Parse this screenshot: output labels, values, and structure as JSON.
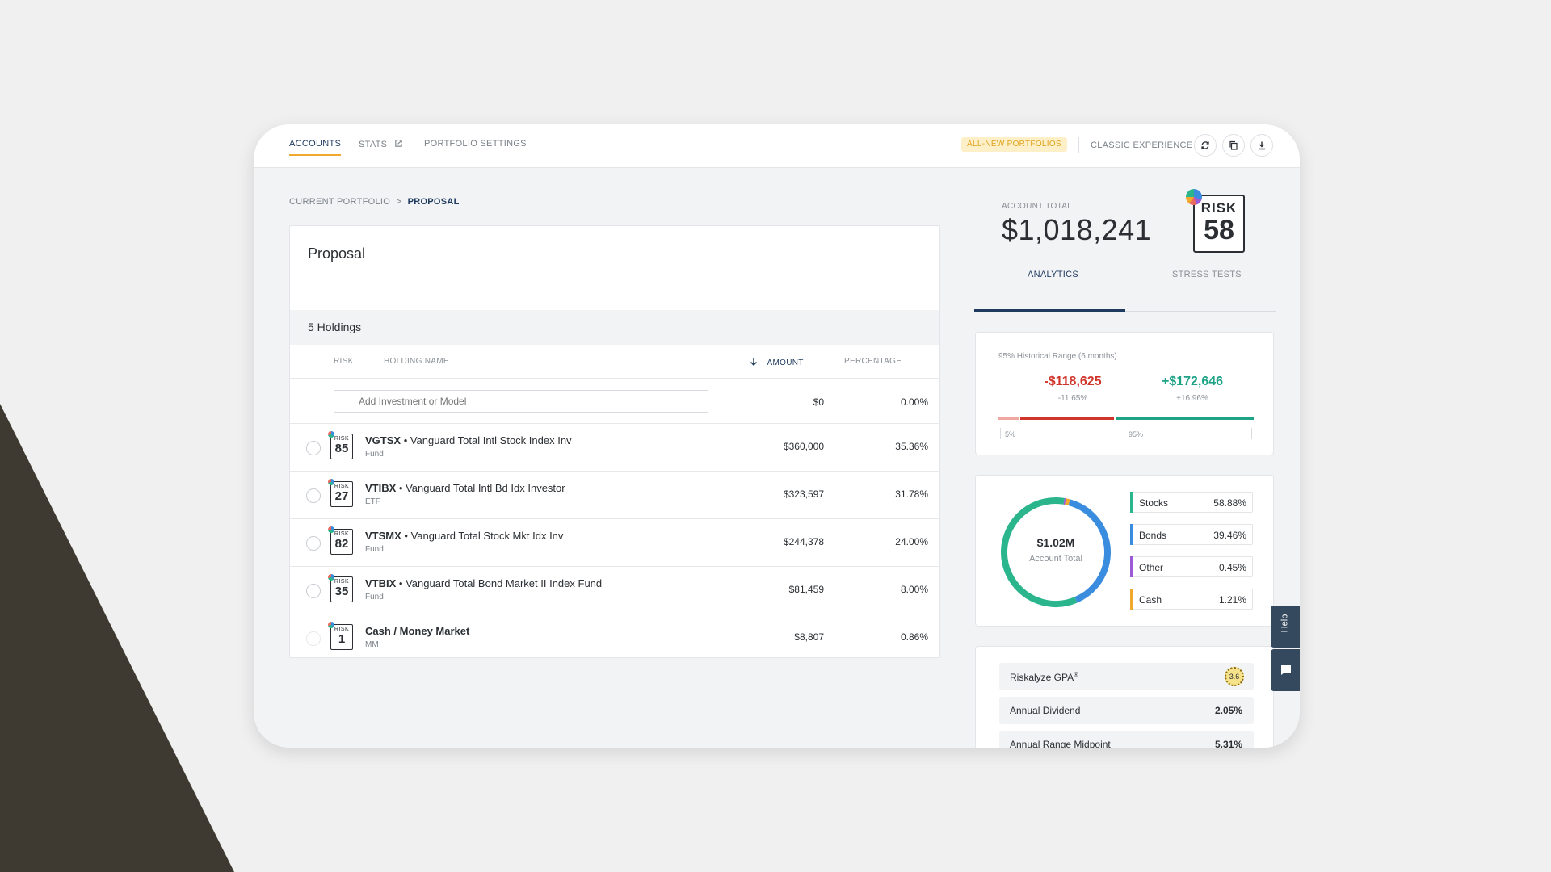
{
  "nav": {
    "tabs": [
      {
        "label": "ACCOUNTS"
      },
      {
        "label": "STATS"
      },
      {
        "label": "PORTFOLIO SETTINGS"
      }
    ],
    "new_portfolios_label": "ALL-NEW PORTFOLIOS",
    "classic_label": "CLASSIC EXPERIENCE",
    "icons": [
      "refresh-icon",
      "copy-icon",
      "download-icon",
      "external-link-icon"
    ]
  },
  "breadcrumb": {
    "parent": "CURRENT PORTFOLIO",
    "separator": ">",
    "current": "PROPOSAL"
  },
  "proposal": {
    "title": "Proposal",
    "holdings_count": "5 Holdings",
    "columns": {
      "risk": "RISK",
      "name": "HOLDING NAME",
      "amount": "AMOUNT",
      "percentage": "PERCENTAGE"
    },
    "add_placeholder": "Add Investment or Model",
    "add_amount": "$0",
    "add_percentage": "0.00%",
    "risk_badge_label": "RISK",
    "holdings": [
      {
        "risk": "85",
        "ticker": "VGTSX",
        "name": " • Vanguard Total Intl Stock Index Inv",
        "type": "Fund",
        "amount": "$360,000",
        "percentage": "35.36%"
      },
      {
        "risk": "27",
        "ticker": "VTIBX",
        "name": " • Vanguard Total Intl Bd Idx Investor",
        "type": "ETF",
        "amount": "$323,597",
        "percentage": "31.78%"
      },
      {
        "risk": "82",
        "ticker": "VTSMX",
        "name": " • Vanguard Total Stock Mkt Idx Inv",
        "type": "Fund",
        "amount": "$244,378",
        "percentage": "24.00%"
      },
      {
        "risk": "35",
        "ticker": "VTBIX",
        "name": " • Vanguard Total Bond Market II Index Fund",
        "type": "Fund",
        "amount": "$81,459",
        "percentage": "8.00%"
      },
      {
        "risk": "1",
        "ticker": "Cash / Money Market",
        "name": "",
        "type": "MM",
        "amount": "$8,807",
        "percentage": "0.86%"
      }
    ]
  },
  "account": {
    "label": "ACCOUNT TOTAL",
    "total": "$1,018,241",
    "risk_label": "RISK",
    "risk_score": "58"
  },
  "right_tabs": {
    "analytics": "ANALYTICS",
    "stress": "STRESS TESTS"
  },
  "range": {
    "title": "95% Historical Range (6 months)",
    "low_value": "-$118,625",
    "low_pct": "-11.65%",
    "high_value": "+$172,646",
    "high_pct": "+16.96%",
    "scale_low": "5%",
    "scale_high": "95%"
  },
  "allocation": {
    "center_value": "$1.02M",
    "center_label": "Account Total",
    "items": [
      {
        "name": "Stocks",
        "value": "58.88%",
        "fraction": 0.5888,
        "color": "#2bb58d"
      },
      {
        "name": "Bonds",
        "value": "39.46%",
        "fraction": 0.3946,
        "color": "#3a8dde"
      },
      {
        "name": "Other",
        "value": "0.45%",
        "fraction": 0.0045,
        "color": "#9b5bd6"
      },
      {
        "name": "Cash",
        "value": "1.21%",
        "fraction": 0.0121,
        "color": "#f0a92e"
      }
    ]
  },
  "metrics": {
    "gpa_label": "Riskalyze GPA",
    "gpa_reg": "®",
    "gpa_value": "3.6",
    "dividend_label": "Annual Dividend",
    "dividend_value": "2.05%",
    "midpoint_label": "Annual Range Midpoint",
    "midpoint_value": "5.31%"
  },
  "help": {
    "label": "Help"
  }
}
